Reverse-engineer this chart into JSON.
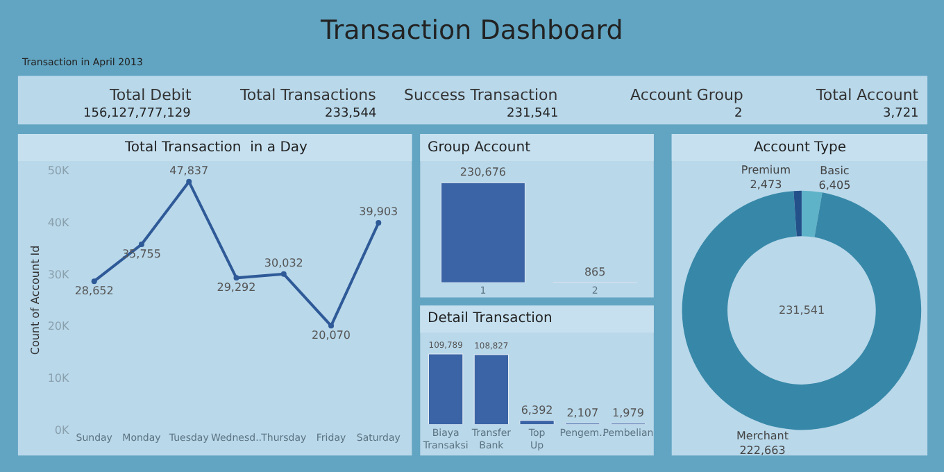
{
  "chart_data": [
    {
      "type": "other",
      "title": "Transaction Dashboard",
      "subtitle": "Transaction in April 2013",
      "annotations": [
        "Total Debit",
        "156,127,777,129",
        "Total Transactions",
        "233,544",
        "Success Transaction",
        "231,541",
        "Account Group",
        "2",
        "Total Account",
        "3,721"
      ]
    },
    {
      "type": "line",
      "title": "Total Transaction  in a Day",
      "ylabel": "Count of Account Id",
      "categories": [
        "Sunday",
        "Monday",
        "Tuesday",
        "Wednesd..",
        "Thursday",
        "Friday",
        "Saturday"
      ],
      "values": [
        28652,
        35755,
        47837,
        29292,
        30032,
        20070,
        39903
      ],
      "color": "#2f5a98",
      "value_labels": [
        "28,652",
        "35,755",
        "47,837",
        "29,292",
        "30,032",
        "20,070",
        "39,903"
      ],
      "ylim": [
        0,
        50000
      ],
      "yticks": [
        {
          "value": 0,
          "label": "0K"
        },
        {
          "value": 10000,
          "label": "10K"
        },
        {
          "value": 20000,
          "label": "20K"
        },
        {
          "value": 30000,
          "label": "30K"
        },
        {
          "value": 40000,
          "label": "40K"
        },
        {
          "value": 50000,
          "label": "50K"
        }
      ],
      "marker": "circle",
      "line_style": "solid",
      "grid": false
    },
    {
      "type": "bar",
      "title": "Group Account",
      "categories": [
        "1",
        "2"
      ],
      "values": [
        230676,
        865
      ],
      "value_labels": [
        "230,676",
        "865"
      ],
      "color": "#3a64a5",
      "tick_labels": "x"
    },
    {
      "type": "bar",
      "title": "Detail Transaction",
      "categories": [
        "Biaya Transaksi",
        "Transfer Bank",
        "Top Up",
        "Pengem..",
        "Pembelian"
      ],
      "values": [
        109789,
        108827,
        6392,
        2107,
        1979
      ],
      "value_labels": [
        "109,789",
        "108,827",
        "6,392",
        "2,107",
        "1,979"
      ],
      "color": "#3a64a5",
      "tick_labels": "x"
    },
    {
      "type": "donut",
      "title": "Account Type",
      "categories": [
        "Basic",
        "Merchant",
        "Premium"
      ],
      "values": [
        6405,
        222663,
        2473
      ],
      "value_labels": [
        "6,405",
        "222,663",
        "2,473"
      ],
      "colors": [
        "#5fb3c8",
        "#3788a8",
        "#24508a"
      ],
      "annotations": [
        "231,541"
      ]
    }
  ]
}
